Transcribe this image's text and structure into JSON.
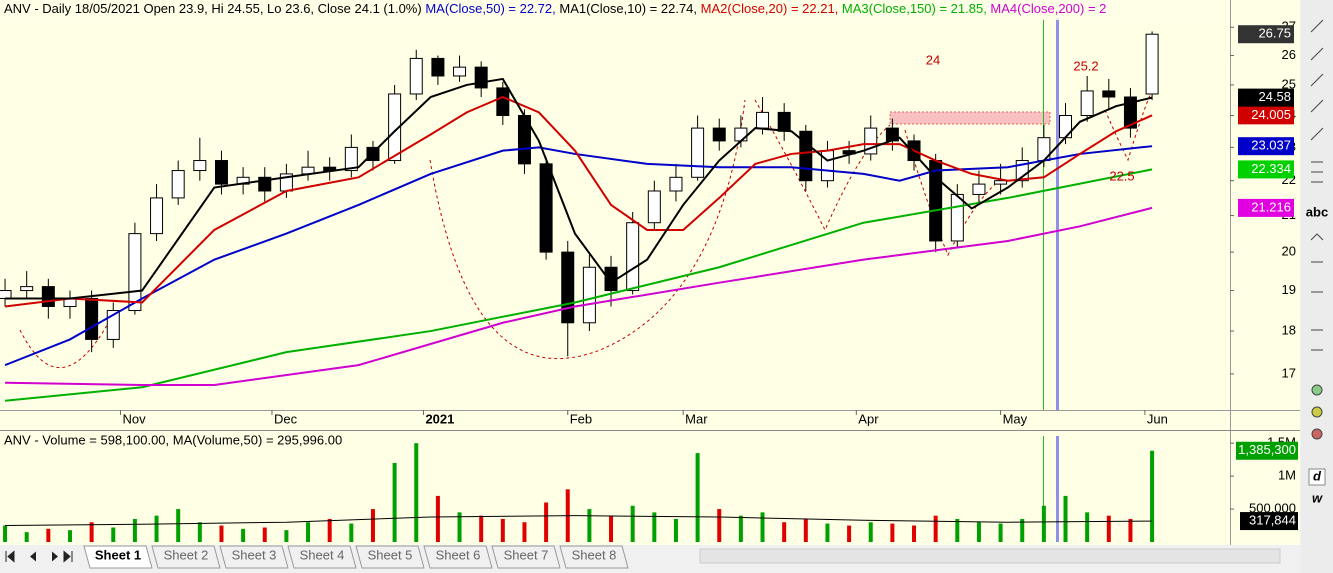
{
  "chart_data": [
    {
      "type": "candlestick",
      "title": [
        {
          "text": "ANV - Daily 18/05/2021 Open 23.9, Hi 24.55, Lo 23.6, Close 24.1 (1.0%) ",
          "color": "#000000"
        },
        {
          "text": "MA(Close,50) = 22.72, ",
          "color": "#0000c8"
        },
        {
          "text": "MA1(Close,10) = 22.74, ",
          "color": "#000000"
        },
        {
          "text": "MA2(Close,20) = 22.21, ",
          "color": "#d00000"
        },
        {
          "text": "MA3(Close,150) = 21.85, ",
          "color": "#00b000"
        },
        {
          "text": "MA4(Close,200) = 2",
          "color": "#d000d0"
        }
      ],
      "log": true,
      "grid": false,
      "xlim": [
        0.3,
        170.8
      ],
      "ylim": [
        16.2,
        28.0
      ],
      "yticks": [
        17,
        18,
        19,
        20,
        21,
        22,
        23,
        24,
        25,
        26,
        27
      ],
      "xticks": [
        {
          "value": 17,
          "label": "Nov"
        },
        {
          "value": 38,
          "label": "Dec"
        },
        {
          "value": 59,
          "label": "2021"
        },
        {
          "value": 79,
          "label": "Feb"
        },
        {
          "value": 95,
          "label": "Mar"
        },
        {
          "value": 119,
          "label": "Apr"
        },
        {
          "value": 139,
          "label": "May"
        },
        {
          "value": 159,
          "label": "Jun"
        }
      ],
      "up_color": "#ffffff",
      "down_color": "#000000",
      "last_close_color": "#333333",
      "x": [
        1,
        4,
        7,
        10,
        13,
        16,
        19,
        22,
        25,
        28,
        31,
        34,
        37,
        40,
        43,
        46,
        49,
        52,
        55,
        58,
        61,
        64,
        67,
        70,
        73,
        76,
        79,
        82,
        85,
        88,
        91,
        94,
        97,
        100,
        103,
        106,
        109,
        112,
        115,
        118,
        121,
        124,
        127,
        130,
        133,
        136,
        139,
        142,
        145,
        148,
        151,
        154,
        157,
        160
      ],
      "open": [
        18.8,
        19.0,
        19.1,
        18.6,
        18.8,
        17.8,
        18.5,
        20.5,
        21.5,
        22.3,
        22.6,
        21.9,
        22.1,
        21.7,
        22.2,
        22.4,
        22.3,
        23.0,
        22.6,
        24.7,
        25.9,
        25.3,
        25.6,
        24.9,
        24.0,
        22.5,
        20.0,
        18.2,
        19.6,
        19.0,
        20.8,
        21.7,
        22.1,
        23.6,
        23.2,
        23.6,
        24.1,
        23.5,
        22.0,
        22.9,
        22.8,
        23.6,
        23.2,
        22.6,
        20.3,
        21.6,
        21.9,
        22.0,
        22.6,
        23.3,
        24.0,
        24.8,
        24.6,
        24.7
      ],
      "high": [
        19.3,
        19.5,
        19.3,
        19.0,
        19.0,
        18.7,
        20.8,
        21.9,
        22.6,
        23.3,
        22.9,
        22.4,
        22.4,
        22.5,
        22.9,
        22.7,
        23.4,
        23.2,
        25.0,
        26.2,
        26.0,
        26.0,
        25.8,
        25.1,
        24.2,
        22.7,
        20.3,
        20.0,
        19.9,
        21.1,
        22.0,
        22.5,
        24.0,
        23.9,
        24.0,
        24.6,
        24.4,
        23.7,
        23.2,
        23.2,
        24.0,
        23.9,
        23.4,
        22.8,
        21.9,
        22.3,
        22.5,
        23.0,
        23.7,
        24.4,
        25.3,
        25.2,
        24.9,
        26.85
      ],
      "low": [
        18.6,
        18.8,
        18.3,
        18.3,
        17.5,
        17.6,
        18.4,
        20.3,
        21.3,
        22.0,
        21.6,
        21.6,
        21.4,
        21.5,
        22.0,
        22.0,
        22.1,
        22.3,
        22.5,
        24.5,
        25.0,
        25.1,
        24.6,
        23.7,
        22.2,
        19.8,
        17.4,
        18.0,
        18.6,
        18.9,
        20.6,
        21.4,
        22.0,
        22.9,
        23.0,
        23.4,
        23.2,
        21.7,
        21.8,
        22.5,
        22.6,
        22.9,
        22.3,
        20.0,
        20.1,
        21.3,
        21.6,
        21.8,
        22.4,
        23.1,
        23.8,
        24.2,
        23.3,
        24.5
      ],
      "close": [
        19.0,
        19.1,
        18.6,
        18.8,
        17.8,
        18.5,
        20.5,
        21.5,
        22.3,
        22.6,
        21.9,
        22.1,
        21.7,
        22.2,
        22.4,
        22.3,
        23.0,
        22.6,
        24.7,
        25.9,
        25.3,
        25.6,
        24.9,
        24.0,
        22.5,
        20.0,
        18.2,
        19.6,
        19.0,
        20.8,
        21.7,
        22.1,
        23.6,
        23.2,
        23.6,
        24.1,
        23.5,
        22.0,
        22.9,
        22.8,
        23.6,
        23.2,
        22.6,
        20.3,
        21.6,
        21.9,
        22.0,
        22.6,
        23.3,
        24.0,
        24.8,
        24.6,
        23.6,
        26.75
      ],
      "series": [
        {
          "color": "#00b000",
          "label_color": "#00d000",
          "x": [
            1,
            20,
            40,
            60,
            80,
            100,
            120,
            140,
            160
          ],
          "values": [
            16.4,
            16.7,
            17.5,
            18.0,
            18.7,
            19.6,
            20.8,
            21.5,
            22.334
          ]
        },
        {
          "color": "#d000d0",
          "label_color": "#e000e0",
          "x": [
            1,
            20,
            30,
            50,
            70,
            80,
            100,
            120,
            140,
            150,
            160
          ],
          "values": [
            16.8,
            16.75,
            16.75,
            17.2,
            18.2,
            18.6,
            19.2,
            19.8,
            20.3,
            20.7,
            21.216
          ]
        },
        {
          "color": "#0000c8",
          "label_color": "#0000c8",
          "x": [
            1,
            10,
            20,
            30,
            40,
            50,
            60,
            70,
            75,
            80,
            90,
            100,
            110,
            120,
            125,
            130,
            140,
            150,
            160
          ],
          "values": [
            17.2,
            17.8,
            18.8,
            19.8,
            20.5,
            21.3,
            22.2,
            22.9,
            23.0,
            22.8,
            22.5,
            22.4,
            22.4,
            22.2,
            22.0,
            22.3,
            22.4,
            22.8,
            23.037
          ]
        },
        {
          "color": "#d00000",
          "label_color": "#d00000",
          "x": [
            1,
            10,
            20,
            30,
            40,
            50,
            60,
            65,
            70,
            75,
            80,
            85,
            90,
            95,
            100,
            105,
            110,
            115,
            120,
            125,
            130,
            135,
            140,
            145,
            150,
            155,
            160
          ],
          "values": [
            18.6,
            18.8,
            18.7,
            20.6,
            21.7,
            22.1,
            23.4,
            24.1,
            24.6,
            24.1,
            22.9,
            21.3,
            20.6,
            20.6,
            21.5,
            22.5,
            22.8,
            22.9,
            23.1,
            23.1,
            22.6,
            22.2,
            22.0,
            22.1,
            22.8,
            23.5,
            24.005
          ]
        },
        {
          "color": "#000000",
          "label_color": "#000000",
          "x": [
            1,
            10,
            20,
            30,
            40,
            50,
            55,
            60,
            65,
            70,
            75,
            80,
            85,
            90,
            95,
            100,
            105,
            110,
            115,
            120,
            125,
            130,
            135,
            140,
            145,
            150,
            155,
            160
          ],
          "values": [
            18.8,
            18.8,
            19.0,
            21.8,
            22.1,
            22.4,
            23.5,
            24.6,
            25.0,
            25.2,
            23.2,
            20.5,
            19.2,
            19.8,
            21.3,
            22.6,
            23.6,
            23.5,
            22.6,
            22.9,
            23.3,
            22.1,
            21.2,
            21.8,
            22.6,
            23.8,
            24.3,
            24.58
          ]
        }
      ],
      "annotations": [
        "24",
        "25.2",
        "22.5"
      ]
    },
    {
      "type": "volume",
      "title": "ANV - Volume = 598,100.00, MA(Volume,50) = 295,996.00",
      "ylim": [
        0,
        1670000
      ],
      "yticks": [
        {
          "value": 500000,
          "label": "500,000"
        },
        {
          "value": 1000000,
          "label": "1M"
        },
        {
          "value": 1500000,
          "label": "1.5M"
        }
      ],
      "up_color": "#00a000",
      "down_color": "#e00000",
      "values": [
        250000,
        150000,
        200000,
        180000,
        300000,
        220000,
        350000,
        400000,
        500000,
        300000,
        250000,
        200000,
        220000,
        180000,
        300000,
        350000,
        280000,
        500000,
        1200000,
        1500000,
        700000,
        450000,
        400000,
        350000,
        300000,
        600000,
        800000,
        500000,
        400000,
        550000,
        450000,
        350000,
        1350000,
        500000,
        400000,
        450000,
        300000,
        350000,
        280000,
        250000,
        300000,
        280000,
        250000,
        400000,
        350000,
        300000,
        280000,
        350000,
        550000,
        700000,
        450000,
        400000,
        350000,
        1385300
      ],
      "last_label": "1,385,300",
      "ma": {
        "color": "#000000",
        "x": [
          1,
          20,
          40,
          60,
          80,
          100,
          120,
          140,
          160
        ],
        "values": [
          250000,
          270000,
          300000,
          380000,
          400000,
          380000,
          330000,
          300000,
          317844
        ],
        "last_label": "317,844"
      }
    }
  ],
  "sheets": [
    "Sheet 1",
    "Sheet 2",
    "Sheet 3",
    "Sheet 4",
    "Sheet 5",
    "Sheet 6",
    "Sheet 7",
    "Sheet 8"
  ],
  "toolbar": [
    "abc",
    "d",
    "w"
  ]
}
